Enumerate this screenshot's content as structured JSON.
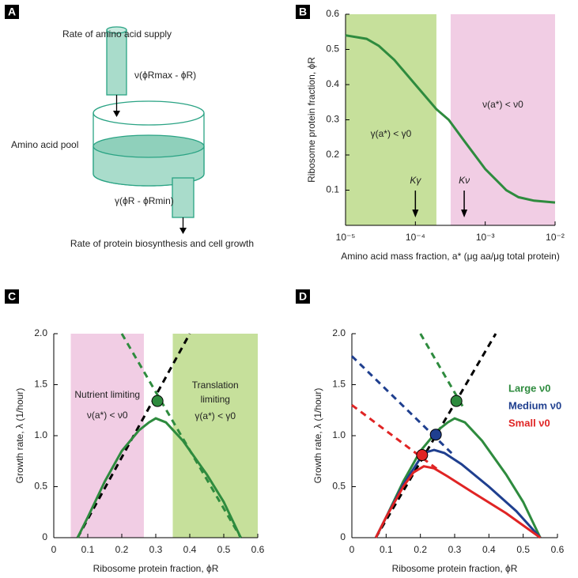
{
  "panel_labels": [
    "A",
    "B",
    "C",
    "D"
  ],
  "diagram": {
    "supply_label": "Rate of amino acid supply",
    "supply_formula": "ν(ϕRmax - ϕR)",
    "pool_label": "Amino acid pool",
    "output_formula": "γ(ϕR - ϕRmin)",
    "output_label": "Rate of protein biosynthesis and cell growth"
  },
  "chart_data": [
    {
      "type": "line",
      "xscale": "log",
      "xlabel": "Amino acid mass fraction, a* (μg aa/μg total protein)",
      "ylabel": "Ribosome protein fraction, ϕR",
      "xlim": [
        1e-05,
        0.01
      ],
      "ylim": [
        0,
        0.6
      ],
      "xticks": [
        {
          "value": 1e-05,
          "label": "10⁻⁵"
        },
        {
          "value": 0.0001,
          "label": "10⁻⁴"
        },
        {
          "value": 0.001,
          "label": "10⁻³"
        },
        {
          "value": 0.01,
          "label": "10⁻²"
        }
      ],
      "yticks": [
        0.1,
        0.2,
        0.3,
        0.4,
        0.5,
        0.6
      ],
      "regions": [
        {
          "xlim": [
            1e-05,
            0.0002
          ],
          "color": "#c6e09b",
          "labels": [
            "γ(a*) < γ0"
          ]
        },
        {
          "xlim": [
            0.00032,
            0.01
          ],
          "color": "#f1cde4",
          "labels": [
            "ν(a*) < ν0"
          ]
        }
      ],
      "arrows": [
        {
          "x": 0.0001,
          "label": "Kγ"
        },
        {
          "x": 0.0005,
          "label": "Kν"
        }
      ],
      "series": [
        {
          "color": "#2e8b3e",
          "style": "solid",
          "x": [
            1e-05,
            2e-05,
            3e-05,
            5e-05,
            0.0001,
            0.0002,
            0.0003,
            0.0005,
            0.001,
            0.002,
            0.003,
            0.005,
            0.01
          ],
          "values": [
            0.54,
            0.53,
            0.51,
            0.47,
            0.4,
            0.33,
            0.3,
            0.24,
            0.16,
            0.1,
            0.08,
            0.07,
            0.065
          ]
        }
      ]
    },
    {
      "type": "line",
      "xlabel": "Ribosome protein fraction, ϕR",
      "ylabel": "Growth rate, λ (1/hour)",
      "xlim": [
        0,
        0.6
      ],
      "ylim": [
        0,
        2
      ],
      "xticks": [
        0,
        0.1,
        0.2,
        0.3,
        0.4,
        0.5,
        0.6
      ],
      "yticks": [
        0,
        0.5,
        {
          "value": 1,
          "label": "1.0"
        },
        1.5,
        {
          "value": 2,
          "label": "2.0"
        }
      ],
      "regions": [
        {
          "xlim": [
            0.05,
            0.265
          ],
          "color": "#f1cde4",
          "labels": [
            "Nutrient limiting",
            "ν(a*) < ν0"
          ]
        },
        {
          "xlim": [
            0.35,
            0.6
          ],
          "color": "#c6e09b",
          "labels": [
            "Translation",
            "limiting",
            "γ(a*) < γ0"
          ]
        }
      ],
      "series": [
        {
          "color": "#000000",
          "style": "dashed",
          "x": [
            0.07,
            0.4
          ],
          "values": [
            0,
            2
          ]
        },
        {
          "color": "#2e8b3e",
          "style": "dashed",
          "x": [
            0.2,
            0.55
          ],
          "values": [
            2,
            0
          ]
        },
        {
          "color": "#2e8b3e",
          "style": "solid",
          "x": [
            0.07,
            0.1,
            0.15,
            0.2,
            0.25,
            0.28,
            0.3,
            0.33,
            0.38,
            0.45,
            0.5,
            0.55
          ],
          "values": [
            0,
            0.2,
            0.55,
            0.85,
            1.05,
            1.13,
            1.17,
            1.13,
            0.95,
            0.62,
            0.35,
            0
          ]
        }
      ],
      "markers": {
        "x": [
          0.305
        ],
        "values": [
          1.34
        ],
        "colors": [
          "#2e8b3e"
        ]
      }
    },
    {
      "type": "line",
      "xlabel": "Ribosome protein fraction, ϕR",
      "ylabel": "Growth rate, λ (1/hour)",
      "xlim": [
        0,
        0.6
      ],
      "ylim": [
        0,
        2
      ],
      "xticks": [
        0,
        0.1,
        0.2,
        0.3,
        0.4,
        0.5,
        0.6
      ],
      "yticks": [
        0,
        0.5,
        {
          "value": 1,
          "label": "1.0"
        },
        1.5,
        {
          "value": 2,
          "label": "2.0"
        }
      ],
      "series": [
        {
          "color": "#000000",
          "style": "dashed",
          "x": [
            0.07,
            0.42
          ],
          "values": [
            0,
            2
          ]
        },
        {
          "color": "#2e8b3e",
          "style": "dashed",
          "x": [
            0.2,
            0.33
          ],
          "values": [
            2,
            1.25
          ]
        },
        {
          "color": "#1f3f8f",
          "style": "dashed",
          "x": [
            0,
            0.3
          ],
          "values": [
            1.78,
            0.8
          ]
        },
        {
          "color": "#e02424",
          "style": "dashed",
          "x": [
            0,
            0.25
          ],
          "values": [
            1.3,
            0.67
          ]
        },
        {
          "name": "Large ν0",
          "color": "#2e8b3e",
          "style": "solid",
          "x": [
            0.07,
            0.1,
            0.15,
            0.2,
            0.25,
            0.28,
            0.3,
            0.33,
            0.38,
            0.45,
            0.5,
            0.55
          ],
          "values": [
            0,
            0.2,
            0.55,
            0.85,
            1.05,
            1.13,
            1.17,
            1.13,
            0.95,
            0.62,
            0.35,
            0
          ]
        },
        {
          "name": "Medium ν0",
          "color": "#1f3f8f",
          "style": "solid",
          "x": [
            0.07,
            0.1,
            0.15,
            0.2,
            0.22,
            0.24,
            0.27,
            0.32,
            0.4,
            0.48,
            0.55
          ],
          "values": [
            0,
            0.2,
            0.52,
            0.78,
            0.84,
            0.86,
            0.83,
            0.72,
            0.5,
            0.26,
            0
          ]
        },
        {
          "name": "Small ν0",
          "color": "#e02424",
          "style": "solid",
          "x": [
            0.07,
            0.1,
            0.15,
            0.18,
            0.21,
            0.24,
            0.28,
            0.35,
            0.45,
            0.55
          ],
          "values": [
            0,
            0.2,
            0.5,
            0.64,
            0.7,
            0.68,
            0.6,
            0.45,
            0.24,
            0
          ]
        }
      ],
      "markers": {
        "x": [
          0.305,
          0.245,
          0.205
        ],
        "values": [
          1.34,
          1.01,
          0.81
        ],
        "colors": [
          "#2e8b3e",
          "#1f3f8f",
          "#e02424"
        ]
      }
    }
  ]
}
